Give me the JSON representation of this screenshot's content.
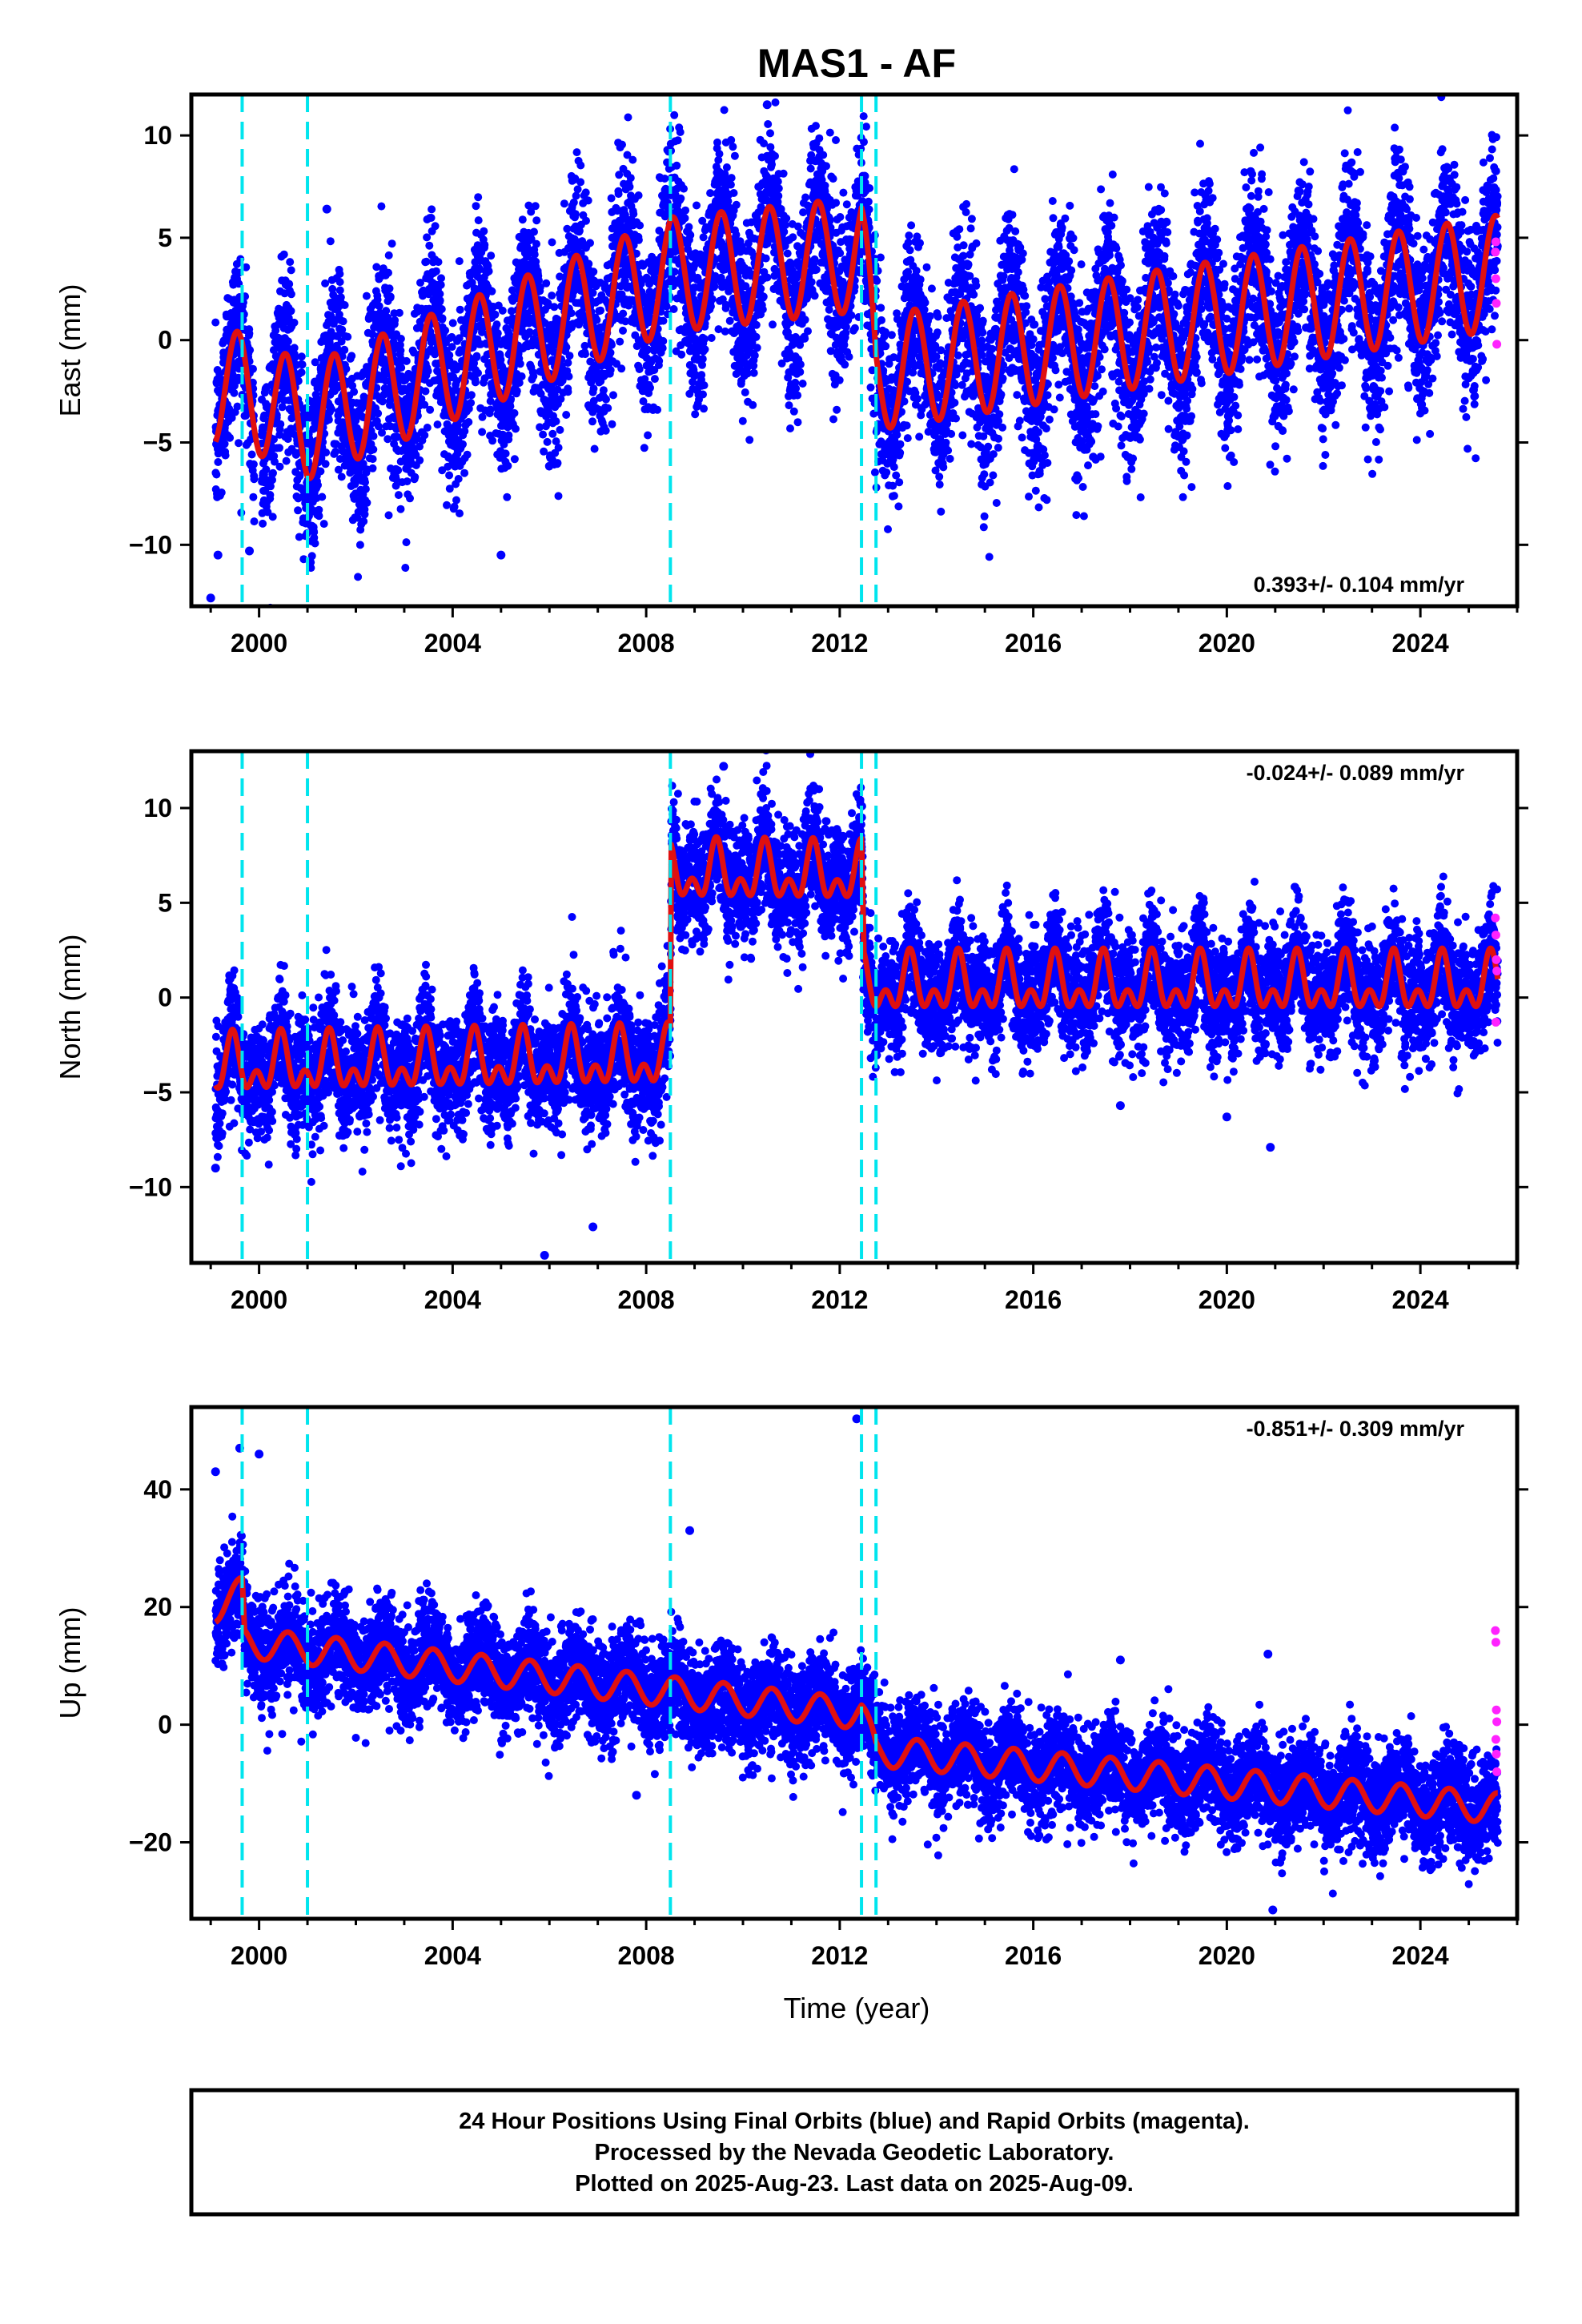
{
  "title": "MAS1 - AF",
  "xlabel": "Time (year)",
  "footer": {
    "line1": "24 Hour Positions Using Final Orbits (blue) and Rapid Orbits (magenta).",
    "line2": "Processed by the Nevada Geodetic Laboratory.",
    "line3": "Plotted on 2025-Aug-23. Last data on 2025-Aug-09."
  },
  "colors": {
    "final": "#0000ff",
    "rapid": "#ff22ff",
    "model": "#e01010",
    "breaks": "#00e5ee",
    "frame": "#000000"
  },
  "chart_data": [
    {
      "type": "scatter",
      "name": "east",
      "ylabel": "East (mm)",
      "xlim": [
        1998.6,
        2026.0
      ],
      "ylim": [
        -13,
        12
      ],
      "xticks": [
        2000,
        2004,
        2008,
        2012,
        2016,
        2020,
        2024
      ],
      "yticks": [
        -10,
        -5,
        0,
        5,
        10
      ],
      "rate_label": "0.393+/- 0.104 mm/yr",
      "rate_position": "bottom-right",
      "breaks": [
        1999.65,
        2001.0,
        2008.5,
        2012.45,
        2012.75
      ],
      "model": {
        "start": 1999.1,
        "end": 2025.6,
        "offsets": [
          [
            1999.1,
            -2.3
          ],
          [
            1999.65,
            -2.4
          ],
          [
            2001.0,
            -4.0
          ],
          [
            2008.5,
            3.2
          ],
          [
            2012.45,
            4.2
          ],
          [
            2012.75,
            -1.6
          ],
          [
            2025.6,
            3.3
          ]
        ],
        "annual_amplitude": 2.8,
        "annual_peak_doy": 0.55,
        "scatter_sigma": 2.1
      },
      "rapid_points": [
        {
          "x": 2025.55,
          "y": 4.3
        },
        {
          "x": 2025.56,
          "y": 3.0
        },
        {
          "x": 2025.57,
          "y": 1.8
        },
        {
          "x": 2025.58,
          "y": -0.2
        },
        {
          "x": 2025.56,
          "y": 4.8
        }
      ],
      "outliers": [
        {
          "x": 1999.0,
          "y": -12.6
        },
        {
          "x": 1999.8,
          "y": -10.3
        },
        {
          "x": 2010.5,
          "y": 11.5
        },
        {
          "x": 2001.4,
          "y": 6.4
        },
        {
          "x": 1999.15,
          "y": -10.5
        },
        {
          "x": 2005.0,
          "y": -10.5
        }
      ]
    },
    {
      "type": "scatter",
      "name": "north",
      "ylabel": "North (mm)",
      "xlim": [
        1998.6,
        2026.0
      ],
      "ylim": [
        -14,
        13
      ],
      "xticks": [
        2000,
        2004,
        2008,
        2012,
        2016,
        2020,
        2024
      ],
      "yticks": [
        -10,
        -5,
        0,
        5,
        10
      ],
      "rate_label": "-0.024+/- 0.089 mm/yr",
      "rate_position": "top-right",
      "breaks": [
        1999.65,
        2001.0,
        2008.5,
        2012.45,
        2012.75
      ],
      "model": {
        "start": 1999.1,
        "end": 2025.6,
        "offsets": [
          [
            1999.1,
            -3.7
          ],
          [
            2008.5,
            -3.3
          ],
          [
            2008.52,
            6.5
          ],
          [
            2012.45,
            6.4
          ],
          [
            2012.5,
            0.6
          ],
          [
            2025.6,
            0.6
          ]
        ],
        "annual_amplitude": 1.1,
        "annual_peak_doy": 0.45,
        "semiannual_amplitude": 0.9,
        "scatter_sigma": 1.5
      },
      "rapid_points": [
        {
          "x": 2025.55,
          "y": 4.2
        },
        {
          "x": 2025.56,
          "y": 3.3
        },
        {
          "x": 2025.57,
          "y": 2.0
        },
        {
          "x": 2025.58,
          "y": 1.4
        },
        {
          "x": 2025.56,
          "y": -1.3
        }
      ],
      "outliers": [
        {
          "x": 2005.9,
          "y": -13.6
        },
        {
          "x": 2006.9,
          "y": -12.1
        },
        {
          "x": 2020.9,
          "y": -7.9
        },
        {
          "x": 2020.0,
          "y": -6.3
        },
        {
          "x": 2009.6,
          "y": 12.2
        },
        {
          "x": 2017.8,
          "y": -5.7
        },
        {
          "x": 1999.1,
          "y": -9.0
        }
      ]
    },
    {
      "type": "scatter",
      "name": "up",
      "ylabel": "Up (mm)",
      "xlim": [
        1998.6,
        2026.0
      ],
      "ylim": [
        -33,
        54
      ],
      "xticks": [
        2000,
        2004,
        2008,
        2012,
        2016,
        2020,
        2024
      ],
      "yticks": [
        -20,
        0,
        20,
        40
      ],
      "rate_label": "-0.851+/- 0.309 mm/yr",
      "rate_position": "top-right",
      "breaks": [
        1999.65,
        2001.0,
        2008.5,
        2012.45,
        2012.75
      ],
      "model": {
        "start": 1999.1,
        "end": 2025.6,
        "offsets": [
          [
            1999.1,
            20.0
          ],
          [
            1999.65,
            22.5
          ],
          [
            1999.7,
            14.0
          ],
          [
            2012.45,
            1.8
          ],
          [
            2012.75,
            -4.5
          ],
          [
            2025.6,
            -14.2
          ]
        ],
        "annual_amplitude": 2.6,
        "annual_peak_doy": 0.6,
        "scatter_sigma": 4.2
      },
      "rapid_points": [
        {
          "x": 2025.55,
          "y": 16.0
        },
        {
          "x": 2025.56,
          "y": 14.0
        },
        {
          "x": 2025.57,
          "y": 2.5
        },
        {
          "x": 2025.58,
          "y": 0.5
        },
        {
          "x": 2025.56,
          "y": -2.5
        },
        {
          "x": 2025.57,
          "y": -5.0
        },
        {
          "x": 2025.58,
          "y": -8.0
        }
      ],
      "outliers": [
        {
          "x": 2012.35,
          "y": 52.0
        },
        {
          "x": 1999.6,
          "y": 47.0
        },
        {
          "x": 2000.0,
          "y": 46.0
        },
        {
          "x": 1999.1,
          "y": 43.0
        },
        {
          "x": 2008.9,
          "y": 33.0
        },
        {
          "x": 2020.95,
          "y": -31.5
        },
        {
          "x": 2020.85,
          "y": 12.0
        },
        {
          "x": 2017.8,
          "y": 11.0
        },
        {
          "x": 2007.8,
          "y": -12.0
        }
      ]
    }
  ]
}
